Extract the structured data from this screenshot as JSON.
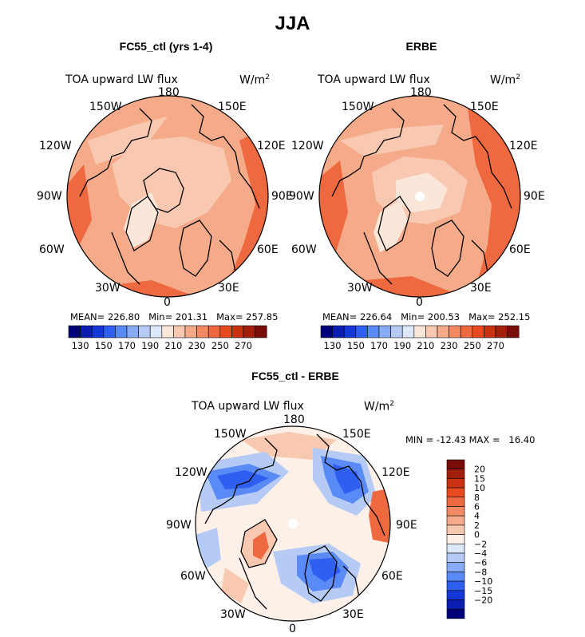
{
  "title": "JJA",
  "panels": [
    {
      "id": "left",
      "subtitle": "FC55_ctl (yrs 1-4)",
      "variable": "TOA upward LW flux",
      "units_base": "W/m",
      "units_exp": "2",
      "stats": {
        "mean_label": "MEAN=",
        "mean": "226.80",
        "min_label": "Min=",
        "min": "201.31",
        "max_label": "Max=",
        "max": "257.85"
      },
      "lon_labels": {
        "n": "180",
        "nne": "150E",
        "ene": "120E",
        "e": "90E",
        "ese": "60E",
        "sse": "30E",
        "s": "0",
        "ssw": "30W",
        "wsw": "60W",
        "w": "90W",
        "wnw": "120W",
        "nnw": "150W"
      }
    },
    {
      "id": "right",
      "subtitle": "ERBE",
      "variable": "TOA upward LW flux",
      "units_base": "W/m",
      "units_exp": "2",
      "stats": {
        "mean_label": "MEAN=",
        "mean": "226.64",
        "min_label": "Min=",
        "min": "200.53",
        "max_label": "Max=",
        "max": "252.15"
      },
      "lon_labels": {
        "n": "180",
        "nne": "150E",
        "ene": "120E",
        "e": "90E",
        "ese": "60E",
        "sse": "30E",
        "s": "0",
        "ssw": "30W",
        "wsw": "60W",
        "w": "90W",
        "wnw": "120W",
        "nnw": "150W"
      }
    },
    {
      "id": "diff",
      "subtitle": "FC55_ctl - ERBE",
      "variable": "TOA upward LW flux",
      "units_base": "W/m",
      "units_exp": "2",
      "minmax": "MIN = -12.43 MAX =   16.40",
      "lon_labels": {
        "n": "180",
        "nne": "150E",
        "ene": "120E",
        "e": "90E",
        "ese": "60E",
        "sse": "30E",
        "s": "0",
        "ssw": "30W",
        "wsw": "60W",
        "w": "90W",
        "wnw": "120W",
        "nnw": "150W"
      }
    }
  ],
  "colorbar_abs": {
    "colors": [
      "#00007a",
      "#0a1fb0",
      "#1438d8",
      "#2e5ff0",
      "#5a8af5",
      "#88abf5",
      "#b5cbf5",
      "#dde8fb",
      "#fbe6da",
      "#f8c9b0",
      "#f5ab8a",
      "#f28a63",
      "#ee6840",
      "#e64a1e",
      "#c93212",
      "#a21f0c",
      "#780c06"
    ],
    "ticks": [
      "130",
      "150",
      "170",
      "190",
      "210",
      "230",
      "250",
      "270"
    ]
  },
  "colorbar_diff": {
    "colors": [
      "#00007a",
      "#0a1fb0",
      "#1438d8",
      "#2e5ff0",
      "#5a8af5",
      "#88abf5",
      "#b5cbf5",
      "#dde8fb",
      "#fdf0e8",
      "#f8c9b0",
      "#f5ab8a",
      "#f28a63",
      "#ee6840",
      "#e64a1e",
      "#c93212",
      "#a21f0c",
      "#780c06"
    ],
    "ticks": [
      "20",
      "15",
      "10",
      "8",
      "6",
      "4",
      "2",
      "0",
      "−2",
      "−4",
      "−6",
      "−8",
      "−10",
      "−15",
      "−20"
    ]
  },
  "colors": {
    "abs_base": "#f5ab8a",
    "abs_dark": "#ee6840",
    "abs_light": "#f8c9b0",
    "abs_lighter": "#fbe6da",
    "diff_base": "#fdf0e8",
    "diff_pos": "#f8c9b0",
    "diff_neg1": "#b5cbf5",
    "diff_neg2": "#5a8af5",
    "diff_neg3": "#2e5ff0",
    "diff_strongpos": "#ee6840"
  }
}
